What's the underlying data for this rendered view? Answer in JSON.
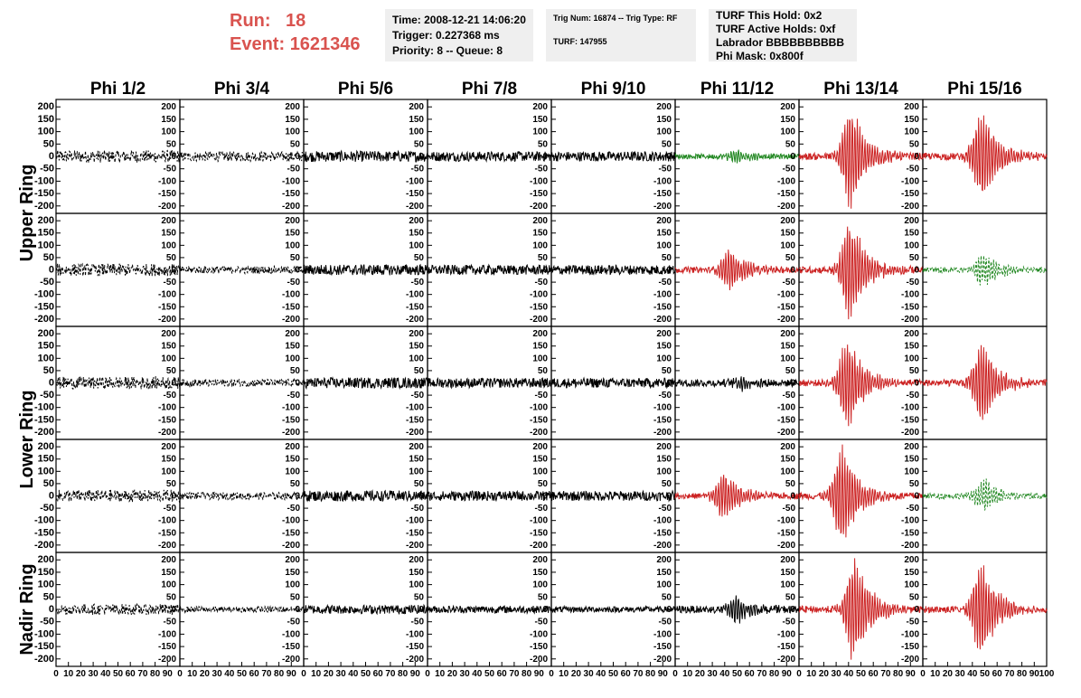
{
  "run": {
    "run_label": "Run:",
    "run_value": "18",
    "event_label": "Event:",
    "event_value": "1621346"
  },
  "info1": [
    "Time: 2008-12-21 14:06:20",
    "Trigger: 0.227368 ms",
    "Priority: 8 -- Queue: 8"
  ],
  "info2": {
    "line1": "Trig Num: 16874 -- Trig Type: RF",
    "line2": "TURF: 147955"
  },
  "info3": [
    "TURF This Hold: 0x2",
    "TURF Active Holds: 0xf",
    "Labrador BBBBBBBBBB",
    "Phi Mask: 0x800f"
  ],
  "colors": {
    "black": "#000000",
    "red": "#cc2222",
    "green": "#228822",
    "header": "#d9534f"
  },
  "chart_data": {
    "type": "line",
    "columns": [
      "Phi 1/2",
      "Phi 3/4",
      "Phi 5/6",
      "Phi 7/8",
      "Phi 9/10",
      "Phi 11/12",
      "Phi 13/14",
      "Phi 15/16"
    ],
    "row_labels": [
      "Upper Ring",
      "Lower Ring",
      "Nadir Ring"
    ],
    "xlim": [
      0,
      100
    ],
    "ylim": [
      -230,
      230
    ],
    "x_ticks": [
      0,
      10,
      20,
      30,
      40,
      50,
      60,
      70,
      80,
      90,
      100
    ],
    "x_tick_labels": [
      "0",
      "10",
      "20",
      "30",
      "40",
      "50",
      "60",
      "70",
      "80",
      "90",
      "100"
    ],
    "y_ticks": [
      200,
      150,
      100,
      50,
      0,
      -50,
      -100,
      -150,
      -200
    ],
    "y_tick_labels": [
      "200",
      "150",
      "100",
      "50",
      "0",
      "-50",
      "-100",
      "-150",
      "-200"
    ],
    "panels": [
      [
        {
          "color": "black",
          "dash": true,
          "amp": 25,
          "burst": 0,
          "peak": 0
        },
        {
          "color": "black",
          "dash": true,
          "amp": 20,
          "burst": 0,
          "peak": 0
        },
        {
          "color": "black",
          "dash": false,
          "amp": 22,
          "burst": 0,
          "peak": 0
        },
        {
          "color": "black",
          "dash": false,
          "amp": 20,
          "burst": 0,
          "peak": 0
        },
        {
          "color": "black",
          "dash": false,
          "amp": 20,
          "burst": 0,
          "peak": 0
        },
        {
          "color": "green",
          "dash": false,
          "amp": 10,
          "burst": 50,
          "peak": 30
        },
        {
          "color": "red",
          "dash": false,
          "amp": 14,
          "burst": 42,
          "peak": 220
        },
        {
          "color": "red",
          "dash": false,
          "amp": 14,
          "burst": 48,
          "peak": 200
        }
      ],
      [
        {
          "color": "black",
          "dash": true,
          "amp": 25,
          "burst": 0,
          "peak": 0
        },
        {
          "color": "black",
          "dash": true,
          "amp": 15,
          "burst": 0,
          "peak": 0
        },
        {
          "color": "black",
          "dash": false,
          "amp": 22,
          "burst": 0,
          "peak": 0
        },
        {
          "color": "black",
          "dash": false,
          "amp": 20,
          "burst": 0,
          "peak": 0
        },
        {
          "color": "black",
          "dash": false,
          "amp": 20,
          "burst": 0,
          "peak": 0
        },
        {
          "color": "red",
          "dash": false,
          "amp": 12,
          "burst": 45,
          "peak": 100
        },
        {
          "color": "red",
          "dash": false,
          "amp": 14,
          "burst": 42,
          "peak": 220
        },
        {
          "color": "green",
          "dash": true,
          "amp": 12,
          "burst": 50,
          "peak": 70
        }
      ],
      [
        {
          "color": "black",
          "dash": true,
          "amp": 25,
          "burst": 0,
          "peak": 0
        },
        {
          "color": "black",
          "dash": true,
          "amp": 15,
          "burst": 0,
          "peak": 0
        },
        {
          "color": "black",
          "dash": false,
          "amp": 22,
          "burst": 0,
          "peak": 0
        },
        {
          "color": "black",
          "dash": false,
          "amp": 20,
          "burst": 0,
          "peak": 0
        },
        {
          "color": "black",
          "dash": false,
          "amp": 20,
          "burst": 0,
          "peak": 0
        },
        {
          "color": "black",
          "dash": false,
          "amp": 15,
          "burst": 55,
          "peak": 30
        },
        {
          "color": "red",
          "dash": false,
          "amp": 14,
          "burst": 40,
          "peak": 200
        },
        {
          "color": "red",
          "dash": false,
          "amp": 14,
          "burst": 48,
          "peak": 180
        }
      ],
      [
        {
          "color": "black",
          "dash": true,
          "amp": 25,
          "burst": 0,
          "peak": 0
        },
        {
          "color": "black",
          "dash": true,
          "amp": 15,
          "burst": 0,
          "peak": 0
        },
        {
          "color": "black",
          "dash": false,
          "amp": 22,
          "burst": 0,
          "peak": 0
        },
        {
          "color": "black",
          "dash": false,
          "amp": 20,
          "burst": 0,
          "peak": 0
        },
        {
          "color": "black",
          "dash": false,
          "amp": 20,
          "burst": 0,
          "peak": 0
        },
        {
          "color": "red",
          "dash": false,
          "amp": 12,
          "burst": 40,
          "peak": 100
        },
        {
          "color": "red",
          "dash": false,
          "amp": 14,
          "burst": 35,
          "peak": 220
        },
        {
          "color": "green",
          "dash": true,
          "amp": 12,
          "burst": 50,
          "peak": 70
        }
      ],
      [
        {
          "color": "black",
          "dash": true,
          "amp": 22,
          "burst": 0,
          "peak": 0
        },
        {
          "color": "black",
          "dash": true,
          "amp": 12,
          "burst": 0,
          "peak": 0
        },
        {
          "color": "black",
          "dash": false,
          "amp": 18,
          "burst": 0,
          "peak": 0
        },
        {
          "color": "black",
          "dash": false,
          "amp": 15,
          "burst": 0,
          "peak": 0
        },
        {
          "color": "black",
          "dash": false,
          "amp": 12,
          "burst": 0,
          "peak": 0
        },
        {
          "color": "black",
          "dash": false,
          "amp": 15,
          "burst": 50,
          "peak": 60
        },
        {
          "color": "red",
          "dash": false,
          "amp": 14,
          "burst": 45,
          "peak": 230
        },
        {
          "color": "red",
          "dash": false,
          "amp": 14,
          "burst": 48,
          "peak": 200
        }
      ]
    ]
  }
}
